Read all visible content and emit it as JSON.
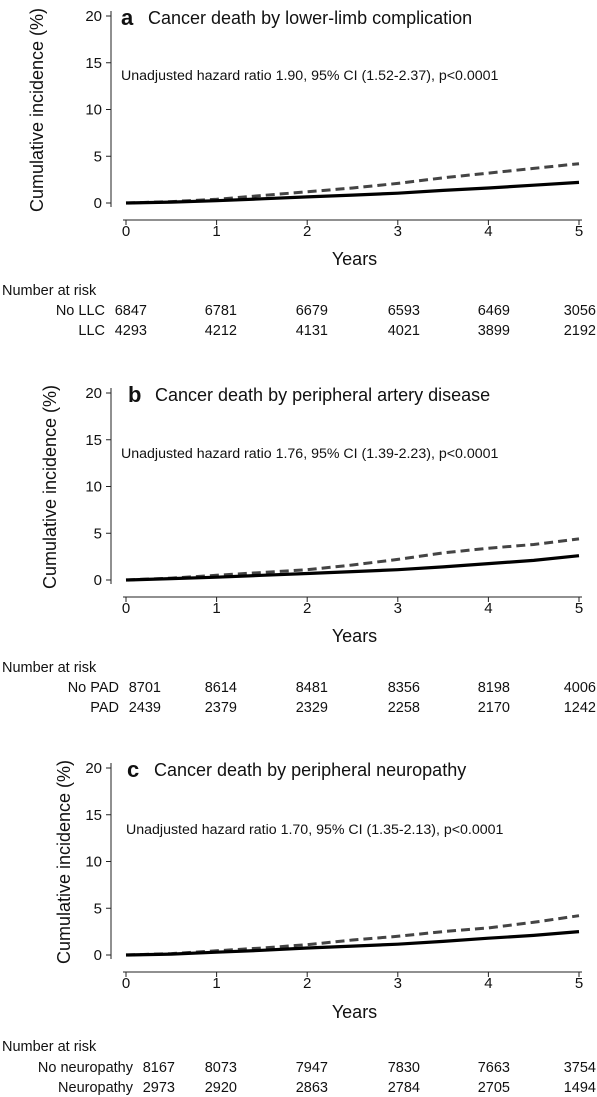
{
  "chart_data": [
    {
      "type": "line",
      "panel_letter": "a",
      "title": "Cancer death by lower-limb complication",
      "annotation": "Unadjusted hazard ratio 1.90, 95% CI (1.52-2.37), p<0.0001",
      "xlabel": "Years",
      "ylabel": "Cumulative incidence (%)",
      "xlim": [
        0,
        5
      ],
      "ylim": [
        0,
        20
      ],
      "xticks": [
        "0",
        "1",
        "2",
        "3",
        "4",
        "5"
      ],
      "yticks": [
        "0",
        "5",
        "10",
        "15",
        "20"
      ],
      "grid": false,
      "series": [
        {
          "style": "dashed",
          "color": "#444444",
          "x": [
            0,
            0.5,
            1,
            1.5,
            2,
            2.5,
            3,
            3.5,
            4,
            4.5,
            5
          ],
          "y": [
            0,
            0.15,
            0.4,
            0.8,
            1.2,
            1.6,
            2.1,
            2.7,
            3.2,
            3.7,
            4.2
          ]
        },
        {
          "style": "solid",
          "color": "#000000",
          "x": [
            0,
            0.5,
            1,
            1.5,
            2,
            2.5,
            3,
            3.5,
            4,
            4.5,
            5
          ],
          "y": [
            0,
            0.1,
            0.25,
            0.45,
            0.65,
            0.85,
            1.05,
            1.35,
            1.6,
            1.9,
            2.2
          ]
        }
      ],
      "risk_table": {
        "header": "Number at risk",
        "rows": [
          {
            "label": "No LLC",
            "values": [
              "6847",
              "6781",
              "6679",
              "6593",
              "6469",
              "3056"
            ]
          },
          {
            "label": "LLC",
            "values": [
              "4293",
              "4212",
              "4131",
              "4021",
              "3899",
              "2192"
            ]
          }
        ]
      }
    },
    {
      "type": "line",
      "panel_letter": "b",
      "title": "Cancer death by peripheral artery disease",
      "annotation": "Unadjusted hazard ratio 1.76, 95% CI (1.39-2.23), p<0.0001",
      "xlabel": "Years",
      "ylabel": "Cumulative incidence (%)",
      "xlim": [
        0,
        5
      ],
      "ylim": [
        0,
        20
      ],
      "xticks": [
        "0",
        "1",
        "2",
        "3",
        "4",
        "5"
      ],
      "yticks": [
        "0",
        "5",
        "10",
        "15",
        "20"
      ],
      "grid": false,
      "series": [
        {
          "style": "dashed",
          "color": "#444444",
          "x": [
            0,
            0.5,
            1,
            1.5,
            2,
            2.5,
            3,
            3.5,
            4,
            4.5,
            5
          ],
          "y": [
            0,
            0.2,
            0.5,
            0.8,
            1.1,
            1.6,
            2.2,
            2.9,
            3.4,
            3.8,
            4.4
          ]
        },
        {
          "style": "solid",
          "color": "#000000",
          "x": [
            0,
            0.5,
            1,
            1.5,
            2,
            2.5,
            3,
            3.5,
            4,
            4.5,
            5
          ],
          "y": [
            0,
            0.15,
            0.3,
            0.5,
            0.7,
            0.9,
            1.1,
            1.4,
            1.75,
            2.1,
            2.6
          ]
        }
      ],
      "risk_table": {
        "header": "Number at risk",
        "rows": [
          {
            "label": "No PAD",
            "values": [
              "8701",
              "8614",
              "8481",
              "8356",
              "8198",
              "4006"
            ]
          },
          {
            "label": "PAD",
            "values": [
              "2439",
              "2379",
              "2329",
              "2258",
              "2170",
              "1242"
            ]
          }
        ]
      }
    },
    {
      "type": "line",
      "panel_letter": "c",
      "title": "Cancer death by peripheral neuropathy",
      "annotation": "Unadjusted hazard ratio 1.70, 95% CI (1.35-2.13), p<0.0001",
      "xlabel": "Years",
      "ylabel": "Cumulative incidence (%)",
      "xlim": [
        0,
        5
      ],
      "ylim": [
        0,
        20
      ],
      "xticks": [
        "0",
        "1",
        "2",
        "3",
        "4",
        "5"
      ],
      "yticks": [
        "0",
        "5",
        "10",
        "15",
        "20"
      ],
      "grid": false,
      "series": [
        {
          "style": "dashed",
          "color": "#444444",
          "x": [
            0,
            0.5,
            1,
            1.5,
            2,
            2.5,
            3,
            3.5,
            4,
            4.5,
            5
          ],
          "y": [
            0,
            0.15,
            0.45,
            0.75,
            1.1,
            1.6,
            2.0,
            2.5,
            2.9,
            3.5,
            4.2
          ]
        },
        {
          "style": "solid",
          "color": "#000000",
          "x": [
            0,
            0.5,
            1,
            1.5,
            2,
            2.5,
            3,
            3.5,
            4,
            4.5,
            5
          ],
          "y": [
            0,
            0.1,
            0.3,
            0.5,
            0.75,
            0.95,
            1.15,
            1.45,
            1.8,
            2.1,
            2.5
          ]
        }
      ],
      "risk_table": {
        "header": "Number at risk",
        "rows": [
          {
            "label": "No neuropathy",
            "values": [
              "8167",
              "8073",
              "7947",
              "7830",
              "7663",
              "3754"
            ]
          },
          {
            "label": "Neuropathy",
            "values": [
              "2973",
              "2920",
              "2863",
              "2784",
              "2705",
              "1494"
            ]
          }
        ]
      }
    }
  ]
}
